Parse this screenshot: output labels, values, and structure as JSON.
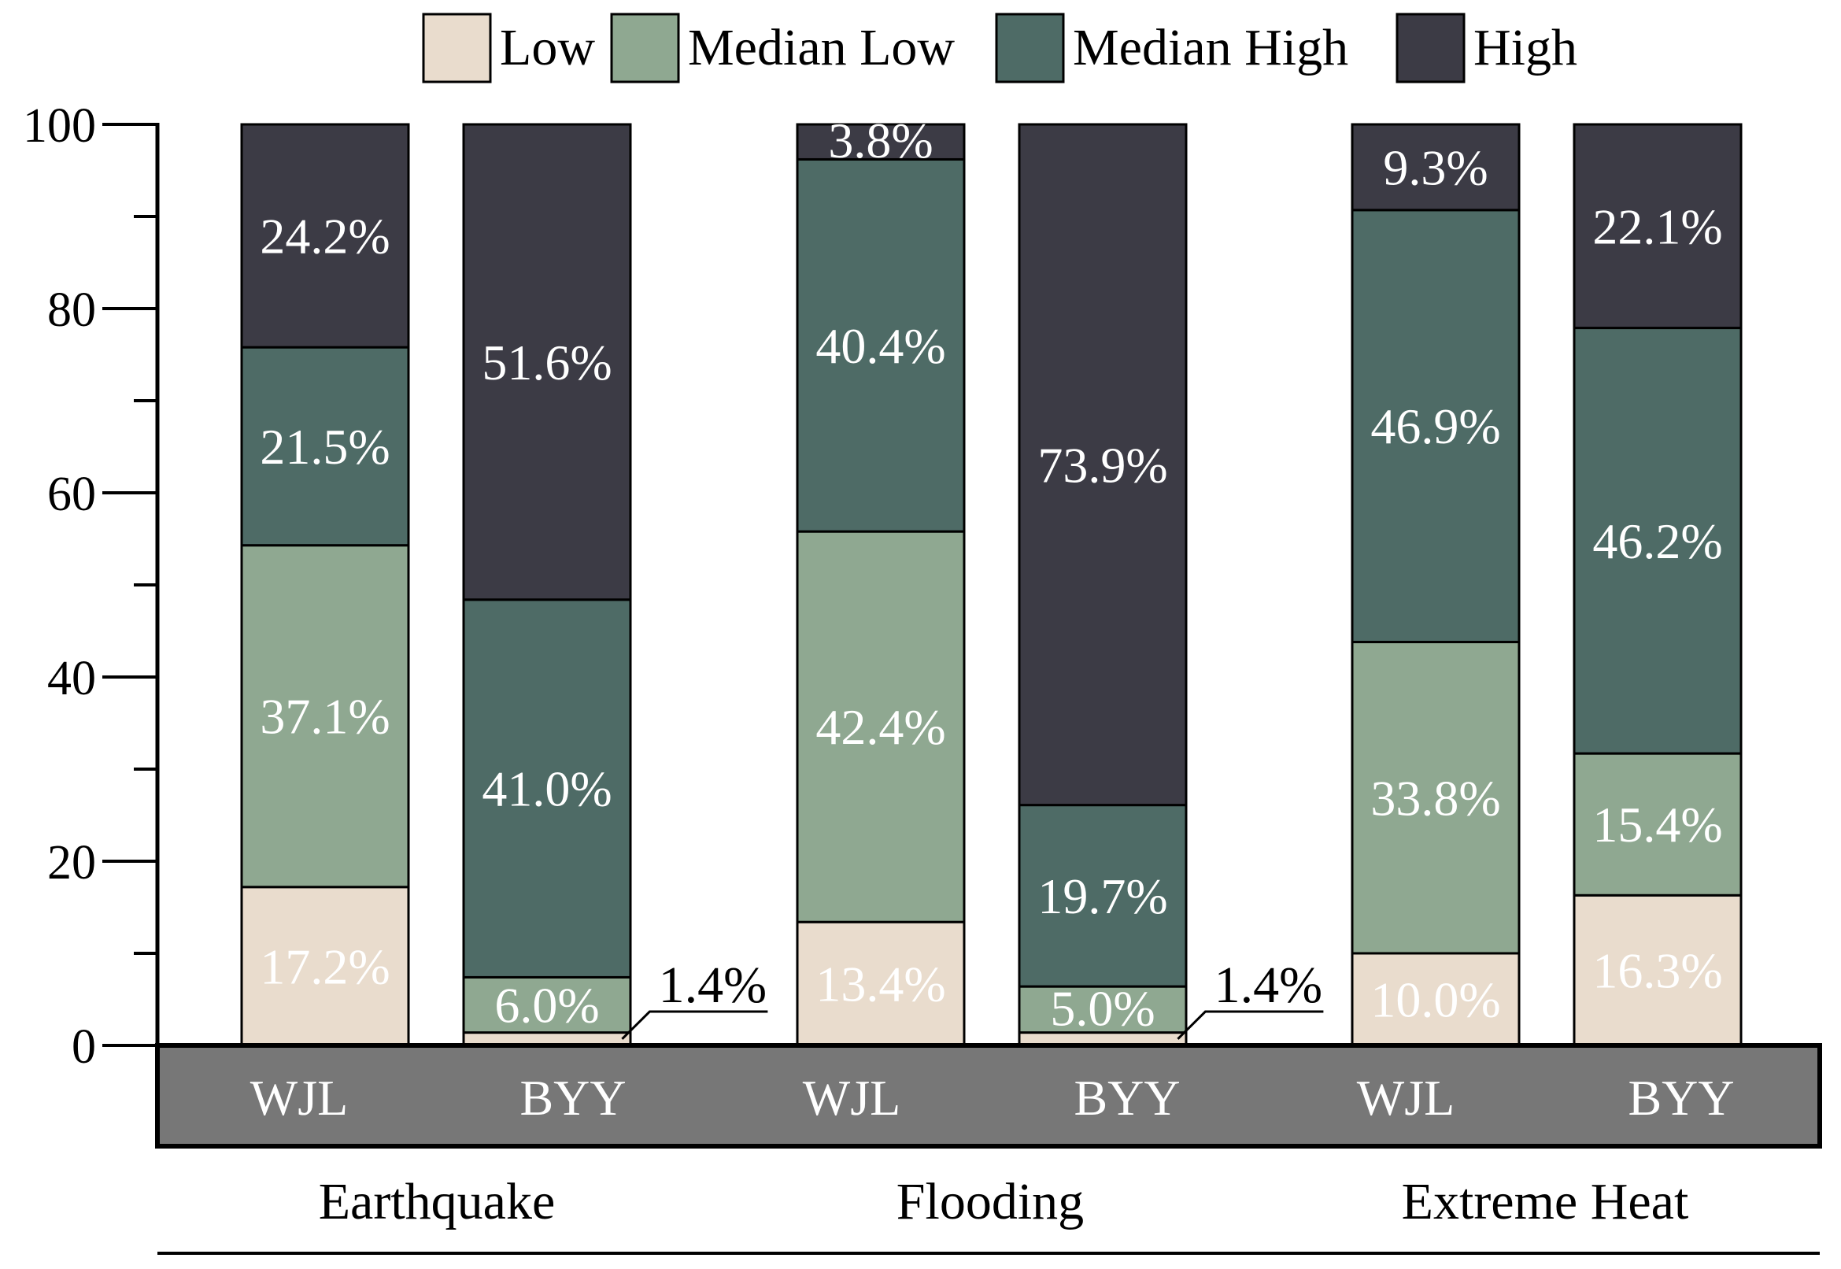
{
  "chart_data": {
    "type": "bar",
    "stacked": true,
    "categories": [
      "WJL",
      "BYY",
      "WJL",
      "BYY",
      "WJL",
      "BYY"
    ],
    "groups": [
      {
        "label": "Earthquake",
        "categories": [
          "WJL",
          "BYY"
        ]
      },
      {
        "label": "Flooding",
        "categories": [
          "WJL",
          "BYY"
        ]
      },
      {
        "label": "Extreme Heat",
        "categories": [
          "WJL",
          "BYY"
        ]
      }
    ],
    "series": [
      {
        "name": "Low",
        "color": "#e9dccd",
        "text_color": "#ffffff",
        "values": [
          17.2,
          1.4,
          13.4,
          1.4,
          10.0,
          16.3
        ],
        "labels": [
          "17.2%",
          "1.4%",
          "13.4%",
          "1.4%",
          "10.0%",
          "16.3%"
        ]
      },
      {
        "name": "Median Low",
        "color": "#8fa891",
        "text_color": "#ffffff",
        "values": [
          37.1,
          6.0,
          42.4,
          5.0,
          33.8,
          15.4
        ],
        "labels": [
          "37.1%",
          "6.0%",
          "42.4%",
          "5.0%",
          "33.8%",
          "15.4%"
        ]
      },
      {
        "name": "Median High",
        "color": "#4e6b66",
        "text_color": "#ffffff",
        "values": [
          21.5,
          41.0,
          40.4,
          19.7,
          46.9,
          46.2
        ],
        "labels": [
          "21.5%",
          "41.0%",
          "40.4%",
          "19.7%",
          "46.9%",
          "46.2%"
        ]
      },
      {
        "name": "High",
        "color": "#3c3b45",
        "text_color": "#ffffff",
        "values": [
          24.2,
          51.6,
          3.8,
          73.9,
          9.3,
          22.1
        ],
        "labels": [
          "24.2%",
          "51.6%",
          "3.8%",
          "73.9%",
          "9.3%",
          "22.1%"
        ]
      }
    ],
    "callouts": [
      {
        "category_index": 1,
        "series": "Low",
        "label": "1.4%"
      },
      {
        "category_index": 3,
        "series": "Low",
        "label": "1.4%"
      }
    ],
    "ylim": [
      0,
      100
    ],
    "yticks": [
      0,
      20,
      40,
      60,
      80,
      100
    ],
    "ytick_labels": [
      "0",
      "20",
      "40",
      "60",
      "80",
      "100"
    ],
    "yminor_step": 10,
    "legend_position": "top",
    "category_band_color": "#777777",
    "category_text_color": "#ffffff",
    "grid": false,
    "title": "",
    "xlabel": "",
    "ylabel": ""
  }
}
